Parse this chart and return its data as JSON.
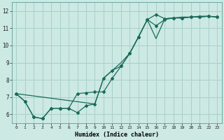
{
  "xlabel": "Humidex (Indice chaleur)",
  "xlim": [
    -0.5,
    23.5
  ],
  "ylim": [
    5.5,
    12.5
  ],
  "yticks": [
    6,
    7,
    8,
    9,
    10,
    11,
    12
  ],
  "xticks": [
    0,
    1,
    2,
    3,
    4,
    5,
    6,
    7,
    8,
    9,
    10,
    11,
    12,
    13,
    14,
    15,
    16,
    17,
    18,
    19,
    20,
    21,
    22,
    23
  ],
  "background_color": "#cce9e4",
  "grid_color": "#aacfca",
  "line_color": "#1a6b5a",
  "curve1_x": [
    0,
    1,
    2,
    3,
    4,
    5,
    6,
    7,
    8,
    9,
    10,
    11,
    12,
    13,
    14,
    15,
    16,
    17,
    18,
    19,
    20,
    21,
    22,
    23
  ],
  "curve1_y": [
    7.2,
    6.75,
    5.85,
    5.75,
    6.35,
    6.35,
    6.35,
    7.2,
    7.25,
    7.3,
    7.3,
    8.1,
    8.8,
    9.55,
    10.5,
    11.5,
    11.15,
    11.5,
    11.6,
    11.6,
    11.65,
    11.65,
    11.7,
    11.65
  ],
  "curve2_x": [
    0,
    1,
    2,
    3,
    4,
    5,
    6,
    7,
    8,
    9,
    10,
    11,
    12,
    13,
    14,
    15,
    16,
    17,
    18,
    19,
    20,
    21,
    22,
    23
  ],
  "curve2_y": [
    7.2,
    6.75,
    5.85,
    5.75,
    6.35,
    6.35,
    6.35,
    6.1,
    6.5,
    6.6,
    8.1,
    8.55,
    8.8,
    9.55,
    10.5,
    11.5,
    11.8,
    11.55,
    11.6,
    11.6,
    11.65,
    11.65,
    11.7,
    11.65
  ],
  "curve3_x": [
    0,
    23
  ],
  "curve3_y": [
    7.2,
    11.65
  ],
  "curve3_marker_x": [
    0,
    9,
    10,
    11,
    12,
    13,
    14,
    15,
    16,
    17,
    18,
    19,
    20,
    21,
    22,
    23
  ],
  "curve3_marker_y": [
    7.2,
    6.6,
    8.1,
    8.55,
    9.0,
    9.55,
    10.5,
    11.5,
    10.4,
    11.55,
    11.6,
    11.65,
    11.65,
    11.7,
    11.7,
    11.65
  ]
}
